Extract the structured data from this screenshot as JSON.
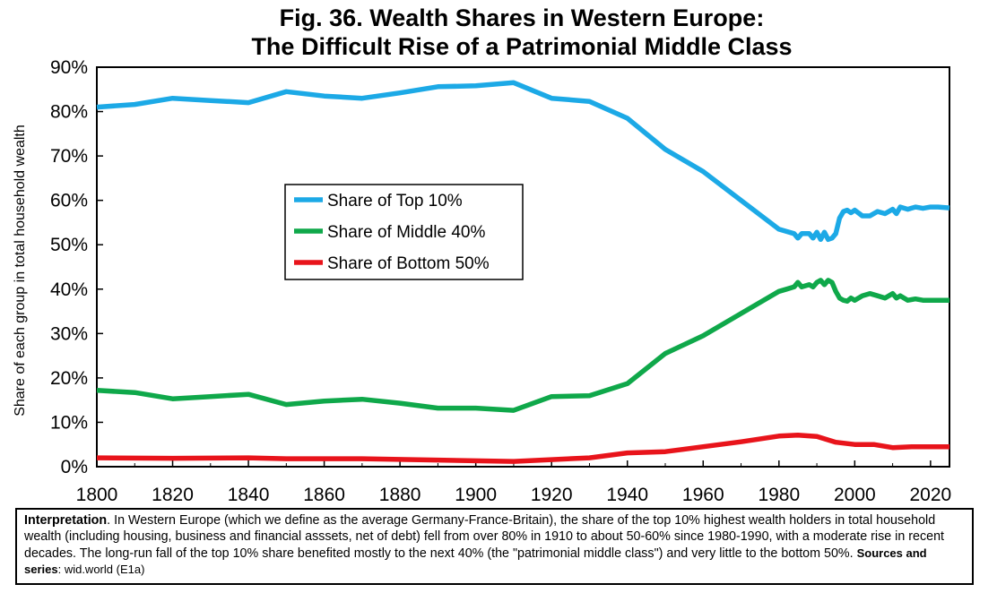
{
  "chart_data": {
    "type": "line",
    "title_line1": "Fig. 36. Wealth Shares in Western Europe:",
    "title_line2": "The Difficult Rise of a Patrimonial Middle Class",
    "ylabel": "Share of each group in total household wealth",
    "xlabel": "",
    "xlim": [
      1800,
      2025
    ],
    "ylim": [
      0,
      90
    ],
    "x_ticks": [
      "1800",
      "1820",
      "1840",
      "1860",
      "1880",
      "1900",
      "1920",
      "1940",
      "1960",
      "1980",
      "2000",
      "2020"
    ],
    "y_ticks": [
      "0%",
      "10%",
      "20%",
      "30%",
      "40%",
      "50%",
      "60%",
      "70%",
      "80%",
      "90%"
    ],
    "legend": "center-left",
    "series": [
      {
        "name": "Share of Top 10%",
        "color": "#1ca9e6",
        "x": [
          1800,
          1810,
          1820,
          1830,
          1840,
          1850,
          1860,
          1870,
          1880,
          1890,
          1900,
          1910,
          1920,
          1930,
          1940,
          1950,
          1960,
          1970,
          1980,
          1982,
          1984,
          1985,
          1986,
          1988,
          1989,
          1990,
          1991,
          1992,
          1993,
          1994,
          1995,
          1996,
          1997,
          1998,
          1999,
          2000,
          2002,
          2004,
          2006,
          2008,
          2010,
          2011,
          2012,
          2014,
          2016,
          2018,
          2020,
          2022,
          2025
        ],
        "y": [
          81,
          81.6,
          83,
          82.5,
          82,
          84.5,
          83.5,
          83,
          84.2,
          85.6,
          85.8,
          86.5,
          83,
          82.3,
          78.5,
          71.5,
          66.5,
          60,
          53.5,
          53,
          52.5,
          51.5,
          52.5,
          52.5,
          51.5,
          52.8,
          51.2,
          52.8,
          51.2,
          51.5,
          52.5,
          56,
          57.5,
          57.8,
          57.2,
          57.8,
          56.5,
          56.5,
          57.5,
          57,
          58,
          57,
          58.5,
          58,
          58.5,
          58.2,
          58.5,
          58.5,
          58.3
        ]
      },
      {
        "name": "Share of Middle 40%",
        "color": "#0fa84a",
        "x": [
          1800,
          1810,
          1820,
          1830,
          1840,
          1850,
          1860,
          1870,
          1880,
          1890,
          1900,
          1910,
          1920,
          1930,
          1940,
          1950,
          1960,
          1970,
          1980,
          1982,
          1984,
          1985,
          1986,
          1988,
          1989,
          1990,
          1991,
          1992,
          1993,
          1994,
          1995,
          1996,
          1997,
          1998,
          1999,
          2000,
          2002,
          2004,
          2006,
          2008,
          2010,
          2011,
          2012,
          2014,
          2016,
          2018,
          2020,
          2022,
          2025
        ],
        "y": [
          17.2,
          16.7,
          15.3,
          15.8,
          16.3,
          14,
          14.8,
          15.2,
          14.3,
          13.2,
          13.2,
          12.7,
          15.8,
          16,
          18.7,
          25.5,
          29.5,
          34.5,
          39.5,
          40,
          40.5,
          41.5,
          40.5,
          41,
          40.5,
          41.5,
          42,
          41,
          42,
          41.5,
          39.5,
          38,
          37.5,
          37.3,
          38,
          37.5,
          38.5,
          39,
          38.5,
          38,
          39,
          38,
          38.5,
          37.5,
          37.8,
          37.5,
          37.5,
          37.5,
          37.5
        ]
      },
      {
        "name": "Share of Bottom 50%",
        "color": "#e8141b",
        "x": [
          1800,
          1820,
          1840,
          1850,
          1870,
          1890,
          1910,
          1930,
          1940,
          1950,
          1960,
          1970,
          1980,
          1985,
          1990,
          1995,
          2000,
          2005,
          2010,
          2015,
          2020,
          2025
        ],
        "y": [
          2,
          1.9,
          2,
          1.8,
          1.8,
          1.5,
          1.2,
          2,
          3.1,
          3.4,
          4.5,
          5.6,
          6.9,
          7.1,
          6.8,
          5.5,
          5,
          5,
          4.3,
          4.5,
          4.5,
          4.5
        ]
      }
    ]
  },
  "interpretation": {
    "label": "Interpretation",
    "text": ". In Western Europe (which we define as the average Germany-France-Britain), the share of the top 10% highest wealth holders in total household wealth (including housing, business and financial asssets, net of debt) fell from over 80% in 1910 to about 50-60% since 1980-1990, with a moderate rise in recent decades. The long-run fall of the top 10% share benefited mostly to the next 40% (the \"patrimonial middle class\") and very little to the bottom 50%.",
    "sources_label": "Sources and series",
    "sources_text": ": wid.world (E1a)"
  }
}
